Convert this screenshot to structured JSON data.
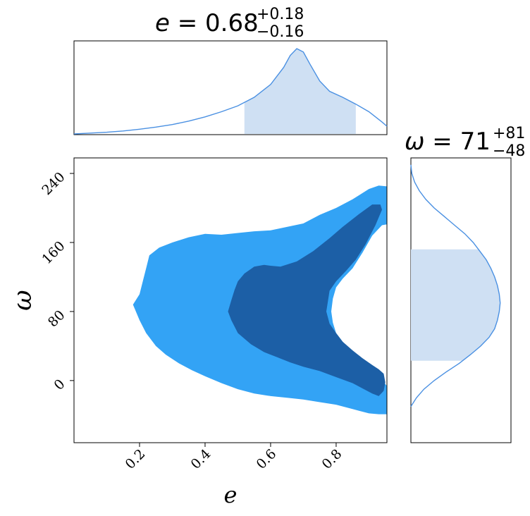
{
  "chart_data": [
    {
      "type": "area",
      "panel": "marginal-e",
      "title": {
        "var": "e",
        "eq": " = ",
        "value": "0.68",
        "plus": "+0.18",
        "minus": "−0.16"
      },
      "x": [
        0.0,
        0.05,
        0.1,
        0.15,
        0.2,
        0.25,
        0.3,
        0.35,
        0.4,
        0.45,
        0.5,
        0.55,
        0.6,
        0.64,
        0.66,
        0.68,
        0.7,
        0.72,
        0.75,
        0.78,
        0.82,
        0.86,
        0.9,
        0.94,
        0.955
      ],
      "density": [
        0.0,
        0.01,
        0.02,
        0.035,
        0.055,
        0.08,
        0.11,
        0.15,
        0.2,
        0.26,
        0.33,
        0.43,
        0.58,
        0.78,
        0.92,
        1.0,
        0.96,
        0.82,
        0.62,
        0.5,
        0.43,
        0.35,
        0.26,
        0.14,
        0.09
      ],
      "credible_interval": [
        0.52,
        0.86
      ],
      "xlim": [
        0.0,
        0.955
      ],
      "color": "#4a90e2",
      "fill_color": "#cfe0f3"
    },
    {
      "type": "area",
      "panel": "marginal-omega",
      "orientation": "horizontal",
      "title": {
        "var": "ω",
        "eq": " = ",
        "value": "71",
        "plus": "+81",
        "minus": "−48"
      },
      "y": [
        -30,
        -20,
        -10,
        0,
        10,
        20,
        30,
        40,
        50,
        60,
        70,
        80,
        90,
        100,
        110,
        120,
        130,
        140,
        150,
        160,
        170,
        180,
        190,
        200,
        210,
        220,
        230,
        240,
        250
      ],
      "density": [
        0.0,
        0.06,
        0.14,
        0.25,
        0.38,
        0.52,
        0.64,
        0.75,
        0.84,
        0.9,
        0.93,
        0.95,
        0.96,
        0.95,
        0.93,
        0.9,
        0.86,
        0.81,
        0.74,
        0.67,
        0.58,
        0.47,
        0.36,
        0.25,
        0.16,
        0.09,
        0.04,
        0.01,
        0.0
      ],
      "credible_interval": [
        23,
        152
      ],
      "ylim": [
        -72,
        258
      ],
      "color": "#4a90e2",
      "fill_color": "#cfe0f3"
    },
    {
      "type": "contour",
      "panel": "joint",
      "xlabel": "e",
      "ylabel": "ω",
      "xlim": [
        0.0,
        0.955
      ],
      "ylim": [
        -72,
        258
      ],
      "xticks": [
        0.2,
        0.4,
        0.6,
        0.8
      ],
      "xtick_labels": [
        "0.2",
        "0.4",
        "0.6",
        "0.8"
      ],
      "yticks": [
        0,
        80,
        160,
        240
      ],
      "ytick_labels": [
        "0",
        "80",
        "160",
        "240"
      ],
      "levels": [
        {
          "name": "outer",
          "color": "#33a3f5",
          "contour": [
            [
              0.18,
              88
            ],
            [
              0.2,
              70
            ],
            [
              0.22,
              55
            ],
            [
              0.25,
              40
            ],
            [
              0.28,
              30
            ],
            [
              0.32,
              20
            ],
            [
              0.36,
              12
            ],
            [
              0.4,
              5
            ],
            [
              0.45,
              -3
            ],
            [
              0.5,
              -10
            ],
            [
              0.55,
              -15
            ],
            [
              0.6,
              -18
            ],
            [
              0.65,
              -20
            ],
            [
              0.7,
              -22
            ],
            [
              0.75,
              -25
            ],
            [
              0.8,
              -28
            ],
            [
              0.85,
              -33
            ],
            [
              0.9,
              -38
            ],
            [
              0.93,
              -39
            ],
            [
              0.955,
              -39
            ],
            [
              0.955,
              -6
            ],
            [
              0.93,
              4
            ],
            [
              0.9,
              14
            ],
            [
              0.87,
              25
            ],
            [
              0.84,
              35
            ],
            [
              0.82,
              45
            ],
            [
              0.8,
              55
            ],
            [
              0.79,
              67
            ],
            [
              0.785,
              80
            ],
            [
              0.79,
              95
            ],
            [
              0.8,
              108
            ],
            [
              0.82,
              118
            ],
            [
              0.85,
              130
            ],
            [
              0.88,
              148
            ],
            [
              0.91,
              168
            ],
            [
              0.94,
              180
            ],
            [
              0.955,
              181
            ],
            [
              0.955,
              225
            ],
            [
              0.93,
              226
            ],
            [
              0.9,
              222
            ],
            [
              0.85,
              210
            ],
            [
              0.8,
              200
            ],
            [
              0.75,
              192
            ],
            [
              0.7,
              182
            ],
            [
              0.65,
              178
            ],
            [
              0.6,
              174
            ],
            [
              0.55,
              173
            ],
            [
              0.5,
              171
            ],
            [
              0.45,
              169
            ],
            [
              0.4,
              170
            ],
            [
              0.35,
              166
            ],
            [
              0.3,
              160
            ],
            [
              0.26,
              154
            ],
            [
              0.23,
              145
            ],
            [
              0.22,
              130
            ],
            [
              0.21,
              115
            ],
            [
              0.2,
              100
            ]
          ]
        },
        {
          "name": "inner",
          "color": "#1c5fa6",
          "contour": [
            [
              0.47,
              80
            ],
            [
              0.48,
              70
            ],
            [
              0.5,
              55
            ],
            [
              0.54,
              42
            ],
            [
              0.58,
              33
            ],
            [
              0.62,
              27
            ],
            [
              0.66,
              21
            ],
            [
              0.7,
              16
            ],
            [
              0.75,
              11
            ],
            [
              0.8,
              4
            ],
            [
              0.85,
              -3
            ],
            [
              0.88,
              -9
            ],
            [
              0.91,
              -15
            ],
            [
              0.93,
              -18
            ],
            [
              0.945,
              -12
            ],
            [
              0.95,
              -2
            ],
            [
              0.945,
              8
            ],
            [
              0.93,
              13
            ],
            [
              0.91,
              18
            ],
            [
              0.88,
              26
            ],
            [
              0.85,
              35
            ],
            [
              0.82,
              45
            ],
            [
              0.8,
              55
            ],
            [
              0.78,
              66
            ],
            [
              0.77,
              80
            ],
            [
              0.775,
              92
            ],
            [
              0.78,
              104
            ],
            [
              0.8,
              115
            ],
            [
              0.83,
              127
            ],
            [
              0.86,
              140
            ],
            [
              0.89,
              158
            ],
            [
              0.92,
              180
            ],
            [
              0.94,
              198
            ],
            [
              0.935,
              204
            ],
            [
              0.91,
              204
            ],
            [
              0.87,
              193
            ],
            [
              0.82,
              178
            ],
            [
              0.78,
              165
            ],
            [
              0.73,
              150
            ],
            [
              0.68,
              138
            ],
            [
              0.63,
              132
            ],
            [
              0.6,
              133
            ],
            [
              0.58,
              134
            ],
            [
              0.55,
              132
            ],
            [
              0.52,
              124
            ],
            [
              0.5,
              115
            ],
            [
              0.49,
              105
            ],
            [
              0.48,
              93
            ]
          ]
        }
      ]
    }
  ]
}
